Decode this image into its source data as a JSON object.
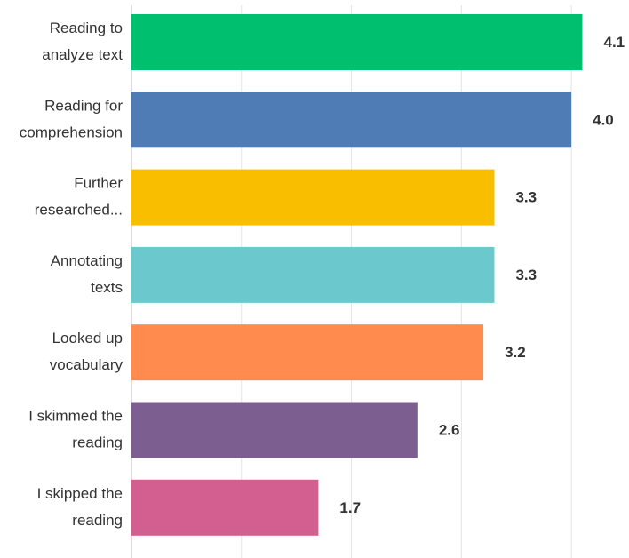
{
  "chart_data": {
    "type": "barh",
    "categories": [
      [
        "Reading to",
        "analyze text"
      ],
      [
        "Reading for",
        "comprehension"
      ],
      [
        "Further",
        "researched..."
      ],
      [
        "Annotating",
        "texts"
      ],
      [
        "Looked up",
        "vocabulary"
      ],
      [
        "I skimmed the",
        "reading"
      ],
      [
        "I skipped the",
        "reading"
      ]
    ],
    "values": [
      4.1,
      4.0,
      3.3,
      3.3,
      3.2,
      2.6,
      1.7
    ],
    "value_labels": [
      "4.1",
      "4.0",
      "3.3",
      "3.3",
      "3.2",
      "2.6",
      "1.7"
    ],
    "colors": [
      "#00bf6f",
      "#507cb6",
      "#f9be00",
      "#6bc8cd",
      "#ff8b4f",
      "#7d5e90",
      "#d25f90"
    ],
    "xlim": [
      0,
      4.5
    ],
    "xticks": [
      0,
      1,
      2,
      3,
      4
    ],
    "grid": true
  }
}
